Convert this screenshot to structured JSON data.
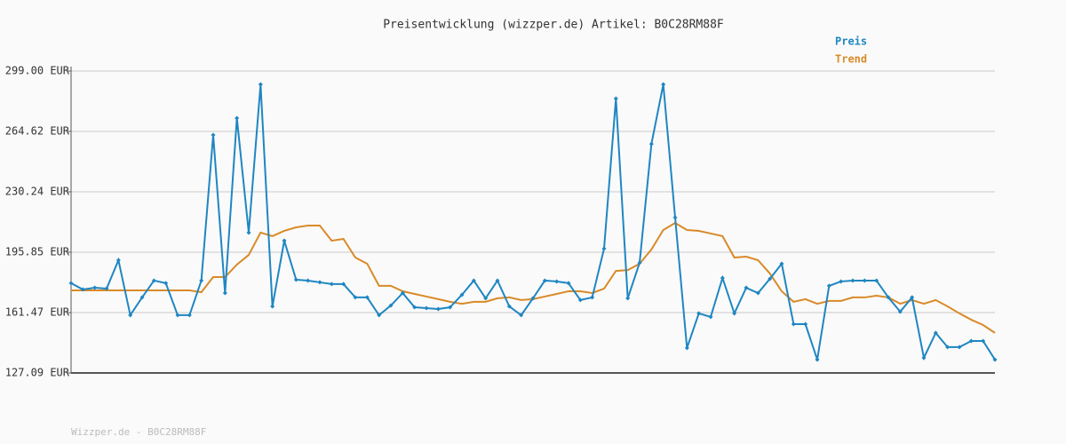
{
  "chart_data": {
    "type": "line",
    "title": "Preisentwicklung (wizzper.de) Artikel: B0C28RM88F",
    "categories": [
      null,
      null,
      null,
      null,
      null,
      null,
      null,
      null,
      null,
      null,
      null,
      null,
      null,
      null,
      null,
      null,
      null,
      null,
      null,
      null,
      null,
      null,
      null,
      null,
      null,
      null,
      null,
      null,
      null,
      null,
      null,
      null,
      null,
      null,
      null,
      null,
      null,
      null,
      null,
      null,
      null,
      null,
      null,
      null,
      null,
      null,
      null,
      null,
      null,
      null,
      null,
      null,
      null,
      null,
      null,
      null,
      null,
      null,
      null,
      null,
      null,
      null,
      null,
      null,
      null,
      null,
      null,
      null,
      null,
      null,
      null,
      null,
      null,
      null,
      null,
      null,
      null,
      null,
      null
    ],
    "series": [
      {
        "name": "Preis",
        "color": "#1f86c2",
        "markers": true,
        "values": [
          178.2,
          174.6,
          175.6,
          175.1,
          191.3,
          160.0,
          170.1,
          179.7,
          178.2,
          160.0,
          160.0,
          179.7,
          262.6,
          172.6,
          272.2,
          207.0,
          291.4,
          165.0,
          202.4,
          180.2,
          179.7,
          178.7,
          177.7,
          177.7,
          170.1,
          170.1,
          160.0,
          165.5,
          172.6,
          164.5,
          164.0,
          163.5,
          164.5,
          171.6,
          179.7,
          169.6,
          179.7,
          165.0,
          160.0,
          169.6,
          179.7,
          179.2,
          178.2,
          168.6,
          170.1,
          197.9,
          283.3,
          169.6,
          189.8,
          257.5,
          291.4,
          215.6,
          141.3,
          161.0,
          159.0,
          181.2,
          161.0,
          175.6,
          172.6,
          180.7,
          189.3,
          154.9,
          154.9,
          134.7,
          176.7,
          179.2,
          179.7,
          179.7,
          179.7,
          170.1,
          162.0,
          170.1,
          135.7,
          149.9,
          141.8,
          141.8,
          145.3,
          145.3,
          134.7
        ]
      },
      {
        "name": "Trend",
        "color": "#d98a28",
        "markers": false,
        "values": [
          174.1,
          174.1,
          174.1,
          174.1,
          174.1,
          174.1,
          174.1,
          174.1,
          174.1,
          174.1,
          174.1,
          173.1,
          181.7,
          181.7,
          188.8,
          194.3,
          207.0,
          205.0,
          208.0,
          210.0,
          211.0,
          211.0,
          202.4,
          203.4,
          192.8,
          189.3,
          176.7,
          176.7,
          173.6,
          172.1,
          170.6,
          169.1,
          167.6,
          166.5,
          167.6,
          167.6,
          169.6,
          170.1,
          168.6,
          169.1,
          170.6,
          172.1,
          173.6,
          173.6,
          172.6,
          175.1,
          185.2,
          185.7,
          189.3,
          197.4,
          208.5,
          212.5,
          208.5,
          208.0,
          206.5,
          205.0,
          192.8,
          193.3,
          191.3,
          183.7,
          173.6,
          167.6,
          169.1,
          166.5,
          168.1,
          168.1,
          170.1,
          170.1,
          171.1,
          170.1,
          166.5,
          168.6,
          166.5,
          168.6,
          165.0,
          161.0,
          157.4,
          154.4,
          149.9
        ]
      }
    ],
    "ylim": [
      127.09,
      299.0
    ],
    "yticks": [
      {
        "value": 127.09,
        "label": "127.09 EUR"
      },
      {
        "value": 161.47,
        "label": "161.47 EUR"
      },
      {
        "value": 195.85,
        "label": "195.85 EUR"
      },
      {
        "value": 230.24,
        "label": "230.24 EUR"
      },
      {
        "value": 264.62,
        "label": "264.62 EUR"
      },
      {
        "value": 299.0,
        "label": "299.00 EUR"
      }
    ],
    "grid": true,
    "legend": "top-right"
  },
  "footer": "Wizzper.de - B0C28RM88F"
}
